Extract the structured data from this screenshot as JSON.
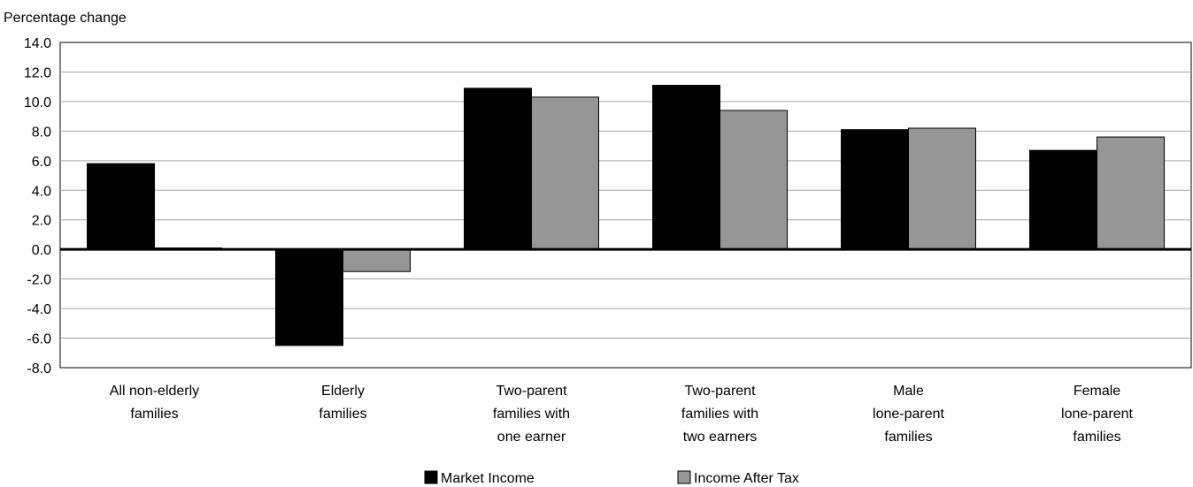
{
  "chart_data": {
    "type": "bar",
    "ylabel": "Percentage change",
    "ylim": [
      -8.0,
      14.0
    ],
    "yticks": [
      "14.0",
      "12.0",
      "10.0",
      "8.0",
      "6.0",
      "4.0",
      "2.0",
      "0.0",
      "-2.0",
      "-4.0",
      "-6.0",
      "-8.0"
    ],
    "grid": true,
    "legend_position": "bottom",
    "categories": [
      [
        "All non-elderly",
        "families"
      ],
      [
        "Elderly",
        "families"
      ],
      [
        "Two-parent",
        "families with",
        "one earner"
      ],
      [
        "Two-parent",
        "families with",
        "two earners"
      ],
      [
        "Male",
        "lone-parent",
        "families"
      ],
      [
        "Female",
        "lone-parent",
        "families"
      ]
    ],
    "series": [
      {
        "name": "Market Income",
        "color": "#000000",
        "values": [
          5.8,
          -6.5,
          10.9,
          11.1,
          8.1,
          6.7
        ]
      },
      {
        "name": "Income After Tax",
        "color": "#969696",
        "values": [
          0.1,
          -1.5,
          10.3,
          9.4,
          8.2,
          7.6
        ]
      }
    ]
  }
}
